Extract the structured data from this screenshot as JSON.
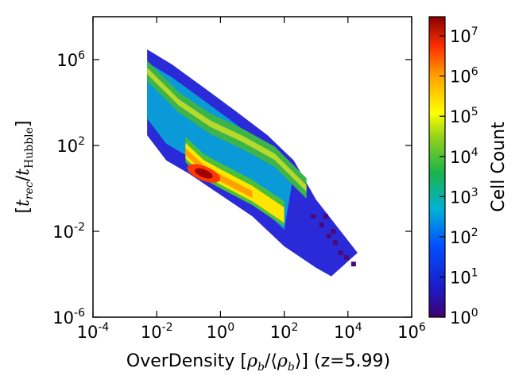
{
  "chart_data": {
    "type": "heatmap",
    "x_scale": "log",
    "y_scale": "log",
    "xlim": [
      0.0001,
      1000000
    ],
    "ylim": [
      1e-06,
      100000000
    ],
    "x_ticks": [
      {
        "value": 0.0001,
        "base": "10",
        "exp": "-4"
      },
      {
        "value": 0.01,
        "base": "10",
        "exp": "-2"
      },
      {
        "value": 1,
        "base": "10",
        "exp": "0"
      },
      {
        "value": 100,
        "base": "10",
        "exp": "2"
      },
      {
        "value": 10000,
        "base": "10",
        "exp": "4"
      },
      {
        "value": 1000000,
        "base": "10",
        "exp": "6"
      }
    ],
    "y_ticks": [
      {
        "value": 1e-06,
        "base": "10",
        "exp": "-6"
      },
      {
        "value": 0.01,
        "base": "10",
        "exp": "-2"
      },
      {
        "value": 100,
        "base": "10",
        "exp": "2"
      },
      {
        "value": 1000000,
        "base": "10",
        "exp": "6"
      }
    ],
    "xlabel": {
      "prefix": "OverDensity [",
      "rho": "ρ",
      "sub": "b",
      "slash": "/⟨",
      "close": "⟩] (z=5.99)"
    },
    "ylabel": {
      "open": "[",
      "t": "t",
      "sub1": "rec",
      "slash": "/",
      "sub2": "Hubble",
      "close": "]"
    },
    "colorbar": {
      "label": "Cell Count",
      "scale": "log",
      "range": [
        1,
        30000000
      ],
      "ticks": [
        {
          "value": 1,
          "base": "10",
          "exp": "0"
        },
        {
          "value": 10,
          "base": "10",
          "exp": "1"
        },
        {
          "value": 100,
          "base": "10",
          "exp": "2"
        },
        {
          "value": 1000,
          "base": "10",
          "exp": "3"
        },
        {
          "value": 10000,
          "base": "10",
          "exp": "4"
        },
        {
          "value": 100000,
          "base": "10",
          "exp": "5"
        },
        {
          "value": 1000000,
          "base": "10",
          "exp": "6"
        },
        {
          "value": 10000000,
          "base": "10",
          "exp": "7"
        }
      ],
      "colormap": "jet"
    },
    "distribution": {
      "description_free": true,
      "envelope_upper": [
        [
          0.005,
          3000000
        ],
        [
          0.03,
          600000
        ],
        [
          0.3,
          50000
        ],
        [
          3,
          4000
        ],
        [
          30,
          300
        ],
        [
          200,
          20
        ],
        [
          1000,
          0.3
        ],
        [
          20000,
          0.001
        ]
      ],
      "envelope_lower": [
        [
          0.005,
          300
        ],
        [
          0.02,
          20
        ],
        [
          0.1,
          5
        ],
        [
          1,
          0.5
        ],
        [
          10,
          0.05
        ],
        [
          100,
          0.002
        ],
        [
          1000,
          0.0002
        ],
        [
          3000,
          8e-05
        ]
      ],
      "ridge_upper": [
        [
          0.005,
          300000
        ],
        [
          0.05,
          10000
        ],
        [
          0.5,
          1000
        ],
        [
          5,
          200
        ],
        [
          50,
          30
        ],
        [
          500,
          1
        ]
      ],
      "ridge_lower": [
        [
          0.08,
          50
        ],
        [
          0.3,
          8
        ],
        [
          1,
          3
        ],
        [
          10,
          0.5
        ],
        [
          100,
          0.05
        ]
      ],
      "peak": {
        "x": 0.3,
        "y": 5,
        "count": 20000000
      }
    }
  }
}
